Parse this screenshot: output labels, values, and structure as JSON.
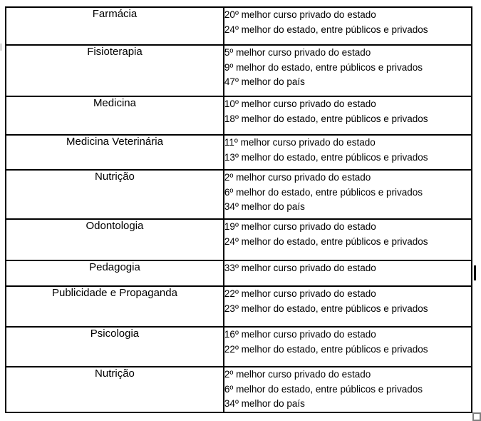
{
  "page": {
    "background_color": "#ffffff",
    "text_color": "#000000",
    "table_border_color": "#000000",
    "resize_handle_color": "#7f7f7f"
  },
  "table": {
    "rows": [
      {
        "course": "Farmácia",
        "rankings": [
          "20º melhor curso privado do estado",
          "24º melhor do estado, entre públicos e privados"
        ]
      },
      {
        "course": "Fisioterapia",
        "rankings": [
          "5º melhor curso privado do estado",
          "9º melhor do estado, entre públicos e privados",
          "47º melhor do país"
        ]
      },
      {
        "course": "Medicina",
        "rankings": [
          "10º melhor curso privado do estado",
          "18º melhor do estado, entre públicos e privados"
        ]
      },
      {
        "course": "Medicina Veterinária",
        "rankings": [
          "11º melhor curso privado do estado",
          "13º melhor do estado, entre públicos e privados"
        ]
      },
      {
        "course": "Nutrição",
        "rankings": [
          "2º melhor curso privado do estado",
          "6º melhor do estado, entre públicos e privados",
          "34º melhor do país"
        ]
      },
      {
        "course": "Odontologia",
        "rankings": [
          "19º melhor curso privado do estado",
          "24º melhor do estado, entre públicos e privados"
        ]
      },
      {
        "course": "Pedagogia",
        "rankings": [
          "33º melhor curso privado do estado"
        ]
      },
      {
        "course": "Publicidade e Propaganda",
        "rankings": [
          "22º melhor curso privado do estado",
          "23º melhor do estado, entre públicos e privados"
        ]
      },
      {
        "course": "Psicologia",
        "rankings": [
          "16º melhor curso privado do estado",
          "22º melhor do estado, entre públicos e privados"
        ]
      },
      {
        "course": "Nutrição",
        "rankings": [
          "2º melhor curso privado do estado",
          "6º melhor do estado, entre públicos e privados",
          "34º melhor do país"
        ]
      }
    ]
  }
}
